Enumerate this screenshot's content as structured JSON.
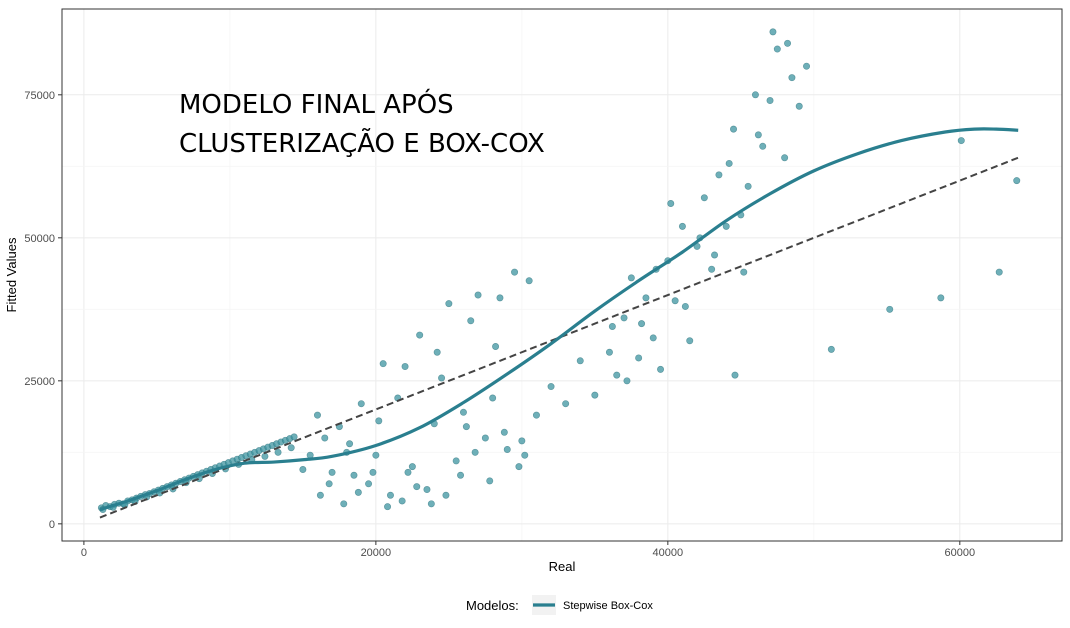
{
  "chart_data": {
    "type": "scatter",
    "xlabel": "Real",
    "ylabel": "Fitted Values",
    "xlim": [
      -1500,
      67000
    ],
    "ylim": [
      -3000,
      90000
    ],
    "x_ticks": [
      0,
      20000,
      40000,
      60000
    ],
    "y_ticks": [
      0,
      25000,
      50000,
      75000
    ],
    "x_tick_labels": [
      "0",
      "20000",
      "40000",
      "60000"
    ],
    "y_tick_labels": [
      "0",
      "25000",
      "50000",
      "75000"
    ],
    "grid": true,
    "annotation": [
      "MODELO FINAL APÓS",
      "CLUSTERIZAÇÃO E BOX-COX"
    ],
    "legend": {
      "title": "Modelos:",
      "position": "bottom",
      "entries": [
        "Stepwise Box-Cox"
      ]
    },
    "colors": {
      "series": "#2a7f8f",
      "points": "#3e94a0",
      "reference": "#444444"
    },
    "smooth_line": {
      "name": "Stepwise Box-Cox",
      "x": [
        1100,
        3000,
        5000,
        7000,
        9000,
        11000,
        13000,
        15000,
        17000,
        20000,
        23000,
        26000,
        29000,
        32000,
        35000,
        38000,
        41000,
        44000,
        47000,
        50000,
        53000,
        56000,
        59000,
        61000,
        62500,
        64000
      ],
      "y": [
        2500,
        4000,
        5800,
        7800,
        9500,
        10600,
        10800,
        11200,
        11800,
        13700,
        16800,
        21200,
        26200,
        31500,
        37200,
        42500,
        47500,
        53000,
        57700,
        61700,
        64700,
        67000,
        68500,
        69000,
        69000,
        68800
      ]
    },
    "reference_line": {
      "x": [
        1100,
        64000
      ],
      "y": [
        1100,
        64000
      ]
    },
    "points": [
      [
        1200,
        2800
      ],
      [
        1500,
        3200
      ],
      [
        1800,
        3000
      ],
      [
        2100,
        3400
      ],
      [
        2400,
        3600
      ],
      [
        2700,
        3500
      ],
      [
        3000,
        4000
      ],
      [
        3300,
        4200
      ],
      [
        3600,
        4500
      ],
      [
        3900,
        4800
      ],
      [
        4200,
        5100
      ],
      [
        4500,
        5300
      ],
      [
        4800,
        5600
      ],
      [
        5100,
        5900
      ],
      [
        5400,
        6200
      ],
      [
        5700,
        6500
      ],
      [
        6000,
        6800
      ],
      [
        6300,
        7100
      ],
      [
        6600,
        7400
      ],
      [
        6900,
        7700
      ],
      [
        7200,
        8000
      ],
      [
        7500,
        8300
      ],
      [
        7800,
        8600
      ],
      [
        8100,
        8900
      ],
      [
        8400,
        9200
      ],
      [
        8700,
        9500
      ],
      [
        9000,
        9800
      ],
      [
        9300,
        10100
      ],
      [
        9600,
        10400
      ],
      [
        9900,
        10700
      ],
      [
        10200,
        11000
      ],
      [
        10500,
        11300
      ],
      [
        10800,
        11600
      ],
      [
        11100,
        11900
      ],
      [
        11400,
        12200
      ],
      [
        11700,
        12500
      ],
      [
        12000,
        12800
      ],
      [
        12300,
        13100
      ],
      [
        12600,
        13400
      ],
      [
        12900,
        13700
      ],
      [
        13200,
        14000
      ],
      [
        13500,
        14300
      ],
      [
        13800,
        14600
      ],
      [
        14100,
        14900
      ],
      [
        14400,
        15200
      ],
      [
        1300,
        2500
      ],
      [
        2000,
        2900
      ],
      [
        2800,
        3300
      ],
      [
        3500,
        3900
      ],
      [
        4300,
        4700
      ],
      [
        5200,
        5400
      ],
      [
        6100,
        6100
      ],
      [
        7000,
        7200
      ],
      [
        7900,
        7900
      ],
      [
        8800,
        8800
      ],
      [
        9700,
        9600
      ],
      [
        10600,
        10400
      ],
      [
        11500,
        11200
      ],
      [
        12400,
        11800
      ],
      [
        13300,
        12500
      ],
      [
        14200,
        13300
      ],
      [
        15000,
        9500
      ],
      [
        15500,
        12000
      ],
      [
        16000,
        19000
      ],
      [
        16500,
        15000
      ],
      [
        17000,
        9000
      ],
      [
        17500,
        17000
      ],
      [
        18000,
        12500
      ],
      [
        18500,
        8500
      ],
      [
        19000,
        21000
      ],
      [
        19500,
        7000
      ],
      [
        20000,
        12000
      ],
      [
        20500,
        28000
      ],
      [
        21000,
        5000
      ],
      [
        21500,
        22000
      ],
      [
        22000,
        27500
      ],
      [
        22500,
        10000
      ],
      [
        23000,
        33000
      ],
      [
        23500,
        6000
      ],
      [
        24000,
        17500
      ],
      [
        24500,
        25500
      ],
      [
        25000,
        38500
      ],
      [
        25500,
        11000
      ],
      [
        26000,
        19500
      ],
      [
        26500,
        35500
      ],
      [
        27000,
        40000
      ],
      [
        27500,
        15000
      ],
      [
        28000,
        22000
      ],
      [
        28500,
        39500
      ],
      [
        29000,
        13000
      ],
      [
        29500,
        44000
      ],
      [
        30000,
        14500
      ],
      [
        30500,
        42500
      ],
      [
        16800,
        7000
      ],
      [
        17800,
        3500
      ],
      [
        18800,
        5500
      ],
      [
        19800,
        9000
      ],
      [
        20800,
        3000
      ],
      [
        21800,
        4000
      ],
      [
        22800,
        6500
      ],
      [
        23800,
        3500
      ],
      [
        24800,
        5000
      ],
      [
        25800,
        8500
      ],
      [
        26800,
        12500
      ],
      [
        27800,
        7500
      ],
      [
        28800,
        16000
      ],
      [
        29800,
        10000
      ],
      [
        16200,
        5000
      ],
      [
        18200,
        14000
      ],
      [
        20200,
        18000
      ],
      [
        22200,
        9000
      ],
      [
        24200,
        30000
      ],
      [
        26200,
        17000
      ],
      [
        28200,
        31000
      ],
      [
        30200,
        12000
      ],
      [
        31000,
        19000
      ],
      [
        32000,
        24000
      ],
      [
        33000,
        21000
      ],
      [
        34000,
        28500
      ],
      [
        35000,
        22500
      ],
      [
        36000,
        30000
      ],
      [
        36500,
        26000
      ],
      [
        37000,
        36000
      ],
      [
        37500,
        43000
      ],
      [
        38000,
        29000
      ],
      [
        38500,
        39500
      ],
      [
        39000,
        32500
      ],
      [
        39500,
        27000
      ],
      [
        40000,
        46000
      ],
      [
        40500,
        39000
      ],
      [
        41000,
        52000
      ],
      [
        41500,
        32000
      ],
      [
        42000,
        48500
      ],
      [
        42500,
        57000
      ],
      [
        43000,
        44500
      ],
      [
        43500,
        61000
      ],
      [
        44000,
        52000
      ],
      [
        44500,
        69000
      ],
      [
        45000,
        54000
      ],
      [
        45500,
        59000
      ],
      [
        46000,
        75000
      ],
      [
        46500,
        66000
      ],
      [
        47000,
        74000
      ],
      [
        47500,
        83000
      ],
      [
        48000,
        64000
      ],
      [
        48500,
        78000
      ],
      [
        49000,
        73000
      ],
      [
        49500,
        80000
      ],
      [
        36200,
        34500
      ],
      [
        37200,
        25000
      ],
      [
        38200,
        35000
      ],
      [
        39200,
        44500
      ],
      [
        40200,
        56000
      ],
      [
        41200,
        38000
      ],
      [
        42200,
        50000
      ],
      [
        43200,
        47000
      ],
      [
        44200,
        63000
      ],
      [
        45200,
        44000
      ],
      [
        46200,
        68000
      ],
      [
        47200,
        86000
      ],
      [
        48200,
        84000
      ],
      [
        44600,
        26000
      ],
      [
        51200,
        30500
      ],
      [
        55200,
        37500
      ],
      [
        58700,
        39500
      ],
      [
        60100,
        67000
      ],
      [
        62700,
        44000
      ],
      [
        63900,
        60000
      ]
    ]
  }
}
